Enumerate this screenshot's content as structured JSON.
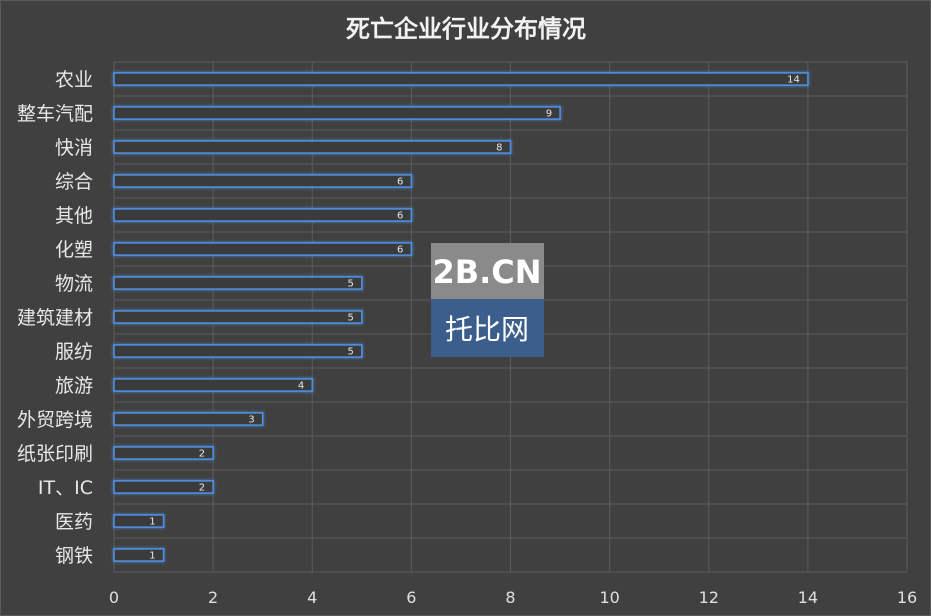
{
  "chart_data": {
    "type": "bar",
    "orientation": "horizontal",
    "title": "死亡企业行业分布情况",
    "categories": [
      "农业",
      "整车汽配",
      "快消",
      "综合",
      "其他",
      "化塑",
      "物流",
      "建筑建材",
      "服纺",
      "旅游",
      "外贸跨境",
      "纸张印刷",
      "IT、IC",
      "医药",
      "钢铁"
    ],
    "values": [
      14,
      9,
      8,
      6,
      6,
      6,
      5,
      5,
      5,
      4,
      3,
      2,
      2,
      1,
      1
    ],
    "xlim": [
      0,
      16
    ],
    "xticks": [
      0,
      2,
      4,
      6,
      8,
      10,
      12,
      14,
      16
    ],
    "grid": true,
    "legend": "none"
  },
  "watermark": {
    "top": "2B.CN",
    "bottom": "托比网"
  },
  "colors": {
    "background": "#404040",
    "bar_border": "#4f8fdf",
    "bar_fill": "#3a3a3a",
    "grid": "#5c5c5c"
  }
}
